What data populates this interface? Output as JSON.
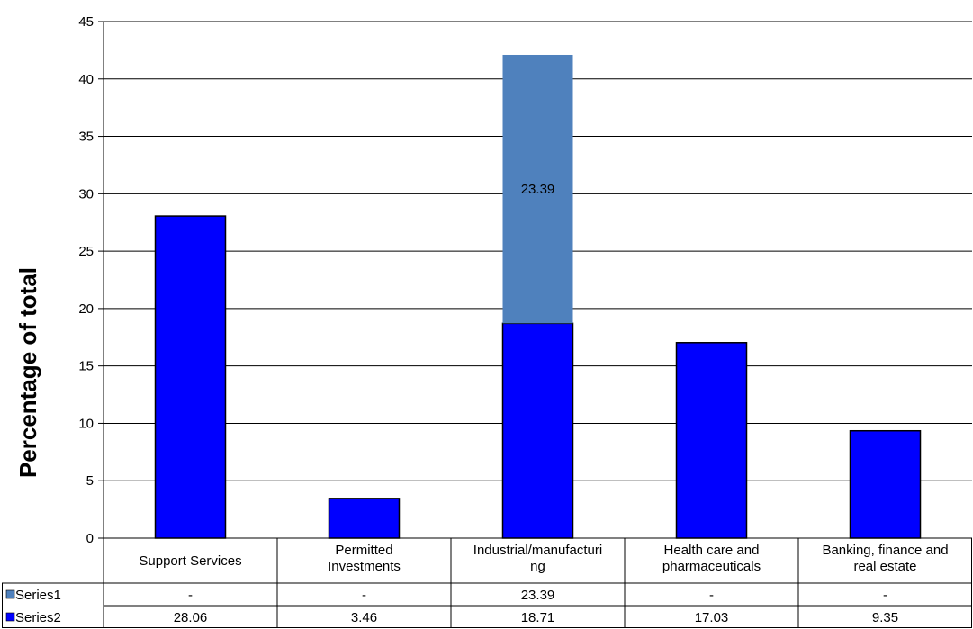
{
  "chart_data": {
    "type": "bar",
    "stacked": true,
    "ylabel": "Percentage of total",
    "ylim": [
      0,
      45
    ],
    "ytick_step": 5,
    "grid": true,
    "categories": [
      [
        "Support Services"
      ],
      [
        "Permitted",
        "Investments"
      ],
      [
        "Industrial/manufacturi",
        "ng"
      ],
      [
        "Health care and",
        "pharmaceuticals"
      ],
      [
        "Banking, finance and",
        "real estate"
      ]
    ],
    "series": [
      {
        "name": "Series1",
        "color": "#4F81BD",
        "values": [
          null,
          null,
          23.39,
          null,
          null
        ],
        "table_labels": [
          "-",
          "-",
          "23.39",
          "-",
          "-"
        ],
        "data_labels": [
          null,
          null,
          "23.39",
          null,
          null
        ]
      },
      {
        "name": "Series2",
        "color": "#0000FF",
        "values": [
          28.06,
          3.46,
          18.71,
          17.03,
          9.35
        ],
        "table_labels": [
          "28.06",
          "3.46",
          "18.71",
          "17.03",
          "9.35"
        ]
      }
    ],
    "data_table": true
  }
}
